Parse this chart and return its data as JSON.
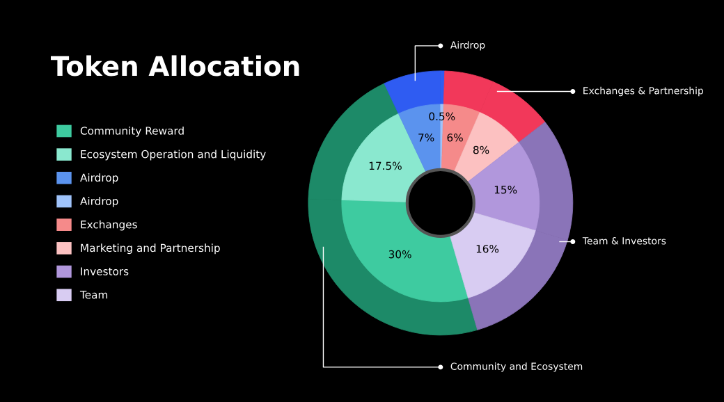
{
  "chart_data": {
    "type": "donut",
    "title": "Token Allocation",
    "categories": [
      "Community Reward",
      "Ecosystem Operation and Liquidity",
      "Airdrop",
      "Airdrop",
      "Exchanges",
      "Marketing and Partnership",
      "Investors",
      "Team"
    ],
    "series": [
      {
        "values": [
          30,
          17.5,
          7,
          0.5,
          6,
          8,
          15,
          16
        ],
        "colors": [
          "#1d8a68",
          "#1d8a68",
          "#2f5cf2",
          "#2f5cf2",
          "#f2385a",
          "#f2385a",
          "#8a74b8",
          "#8a74b8"
        ]
      },
      {
        "values": [
          30,
          17.5,
          7,
          0.5,
          6,
          8,
          15,
          16
        ],
        "value_labels": [
          "30%",
          "17.5%",
          "7%",
          "0.5%",
          "6%",
          "8%",
          "15%",
          "16%"
        ],
        "colors": [
          "#3ecba0",
          "#8ae8cf",
          "#5b93ee",
          "#9fc3fa",
          "#f58a8a",
          "#fcc1c1",
          "#b197dc",
          "#d8ccf2"
        ]
      }
    ],
    "annotations": [
      "Community and Ecosystem",
      "Airdrop",
      "Exchanges & Partnership",
      "Team & Investors"
    ],
    "legend": "left"
  }
}
